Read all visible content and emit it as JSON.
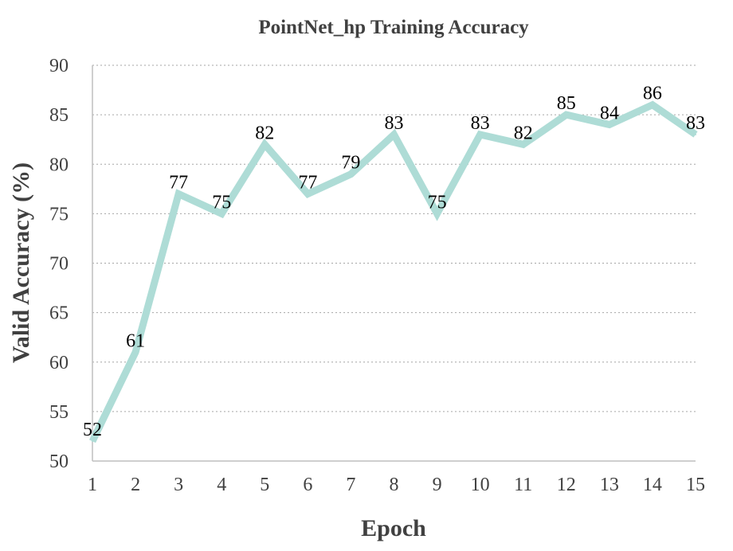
{
  "chart_data": {
    "type": "line",
    "title": "PointNet_hp Training Accuracy",
    "xlabel": "Epoch",
    "ylabel": "Valid Accuracy (%)",
    "x": [
      1,
      2,
      3,
      4,
      5,
      6,
      7,
      8,
      9,
      10,
      11,
      12,
      13,
      14,
      15
    ],
    "y_ticks": [
      50,
      55,
      60,
      65,
      70,
      75,
      80,
      85,
      90
    ],
    "ylim": [
      50,
      90
    ],
    "grid": true,
    "series": [
      {
        "values": [
          52,
          61,
          77,
          75,
          82,
          77,
          79,
          83,
          75,
          83,
          82,
          85,
          84,
          86,
          83
        ],
        "color": "#aedcd6"
      }
    ],
    "data_labels": true
  }
}
